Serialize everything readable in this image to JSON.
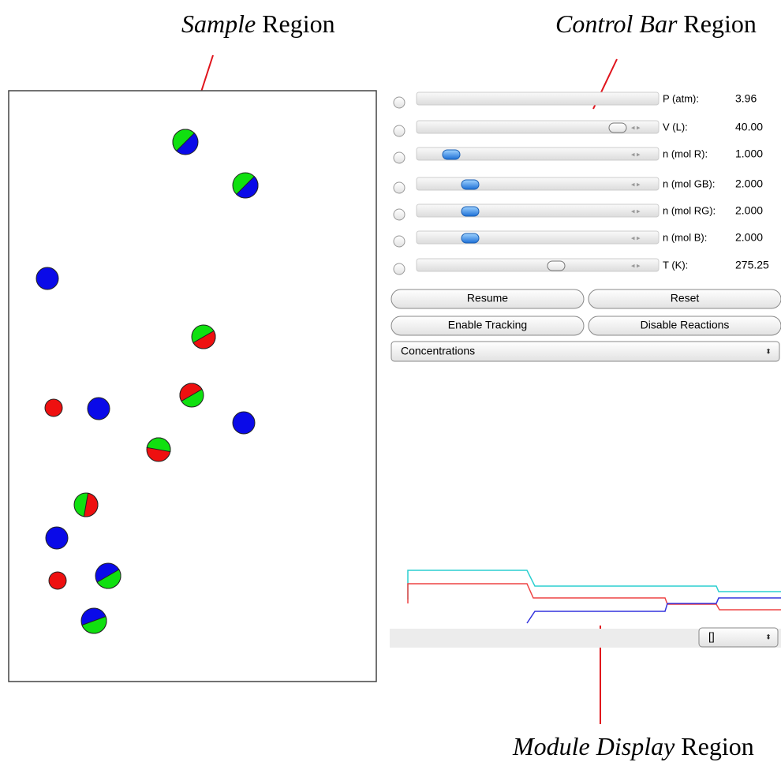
{
  "annotations": [
    {
      "emphasis": "Sample",
      "text": "Region"
    },
    {
      "emphasis": "Control Bar",
      "text": "Region"
    },
    {
      "emphasis": "Module Display",
      "text": "Region"
    }
  ],
  "controls": [
    {
      "label": "P (atm):",
      "value": "3.96"
    },
    {
      "label": "V (L):",
      "value": "40.00"
    },
    {
      "label": "n (mol R):",
      "value": "1.000"
    },
    {
      "label": "n (mol GB):",
      "value": "2.000"
    },
    {
      "label": "n (mol RG):",
      "value": "2.000"
    },
    {
      "label": "n (mol B):",
      "value": "2.000"
    },
    {
      "label": "T (K):",
      "value": "275.25"
    }
  ],
  "buttons": [
    "Resume",
    "Reset",
    "Enable Tracking",
    "Disable Reactions"
  ],
  "display_menu": "Concentrations",
  "module_menu": "[]"
}
